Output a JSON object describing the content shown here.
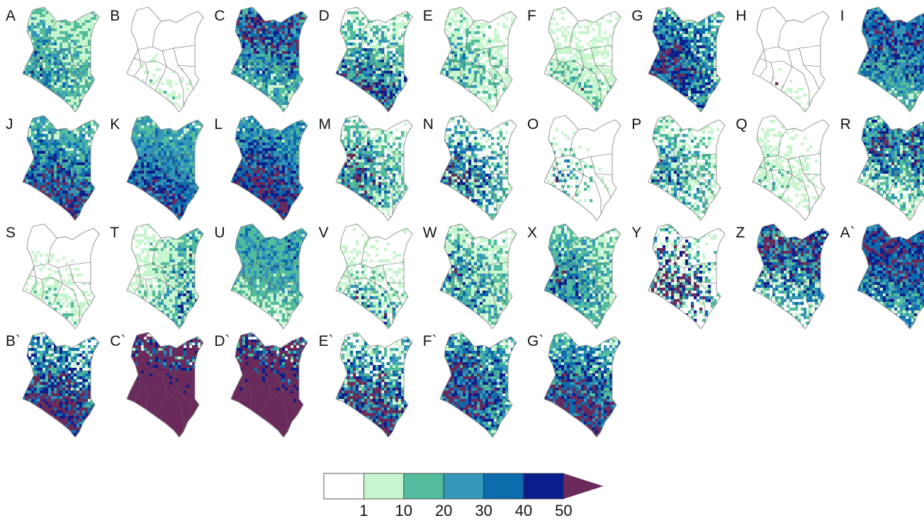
{
  "panels": [
    {
      "label": "A",
      "levels": {
        "1": 0.35,
        "2": 0.2,
        "3": 0.15,
        "4": 0.12,
        "5": 0.05,
        "6": 0.02
      },
      "focus": "west"
    },
    {
      "label": "B",
      "levels": {
        "1": 0.18,
        "2": 0.04,
        "3": 0.0,
        "4": 0.0,
        "5": 0.0,
        "6": 0.0
      },
      "focus": "south"
    },
    {
      "label": "C",
      "levels": {
        "1": 0.15,
        "2": 0.2,
        "3": 0.15,
        "4": 0.12,
        "5": 0.1,
        "6": 0.2
      },
      "focus": "north"
    },
    {
      "label": "D",
      "levels": {
        "1": 0.15,
        "2": 0.15,
        "3": 0.1,
        "4": 0.1,
        "5": 0.1,
        "6": 0.15
      },
      "focus": "south"
    },
    {
      "label": "E",
      "levels": {
        "1": 0.25,
        "2": 0.15,
        "3": 0.08,
        "4": 0.05,
        "5": 0.03,
        "6": 0.02
      },
      "focus": "west"
    },
    {
      "label": "F",
      "levels": {
        "1": 0.35,
        "2": 0.12,
        "3": 0.05,
        "4": 0.02,
        "5": 0.0,
        "6": 0.03
      },
      "focus": "south"
    },
    {
      "label": "G",
      "levels": {
        "1": 0.12,
        "2": 0.1,
        "3": 0.1,
        "4": 0.15,
        "5": 0.15,
        "6": 0.2
      },
      "focus": "west"
    },
    {
      "label": "H",
      "levels": {
        "1": 0.08,
        "2": 0.02,
        "3": 0.0,
        "4": 0.0,
        "5": 0.0,
        "6": 0.03
      },
      "focus": "south"
    },
    {
      "label": "I",
      "levels": {
        "1": 0.1,
        "2": 0.2,
        "3": 0.18,
        "4": 0.15,
        "5": 0.15,
        "6": 0.15
      },
      "focus": "north"
    },
    {
      "label": "J",
      "levels": {
        "1": 0.1,
        "2": 0.2,
        "3": 0.15,
        "4": 0.15,
        "5": 0.1,
        "6": 0.25
      },
      "focus": "south"
    },
    {
      "label": "K",
      "levels": {
        "1": 0.05,
        "2": 0.2,
        "3": 0.25,
        "4": 0.2,
        "5": 0.12,
        "6": 0.15
      },
      "focus": "south"
    },
    {
      "label": "L",
      "levels": {
        "1": 0.02,
        "2": 0.1,
        "3": 0.2,
        "4": 0.2,
        "5": 0.15,
        "6": 0.3
      },
      "focus": "south"
    },
    {
      "label": "M",
      "levels": {
        "1": 0.15,
        "2": 0.15,
        "3": 0.1,
        "4": 0.05,
        "5": 0.05,
        "6": 0.15
      },
      "focus": "west"
    },
    {
      "label": "N",
      "levels": {
        "1": 0.1,
        "2": 0.1,
        "3": 0.1,
        "4": 0.08,
        "5": 0.08,
        "6": 0.12
      },
      "focus": "west"
    },
    {
      "label": "O",
      "levels": {
        "1": 0.1,
        "2": 0.06,
        "3": 0.05,
        "4": 0.04,
        "5": 0.02,
        "6": 0.02
      },
      "focus": "west"
    },
    {
      "label": "P",
      "levels": {
        "1": 0.15,
        "2": 0.12,
        "3": 0.1,
        "4": 0.08,
        "5": 0.06,
        "6": 0.05
      },
      "focus": "west"
    },
    {
      "label": "Q",
      "levels": {
        "1": 0.25,
        "2": 0.08,
        "3": 0.03,
        "4": 0.0,
        "5": 0.0,
        "6": 0.02
      },
      "focus": "west"
    },
    {
      "label": "R",
      "levels": {
        "1": 0.15,
        "2": 0.15,
        "3": 0.1,
        "4": 0.1,
        "5": 0.08,
        "6": 0.15
      },
      "focus": "north"
    },
    {
      "label": "S",
      "levels": {
        "1": 0.25,
        "2": 0.06,
        "3": 0.03,
        "4": 0.0,
        "5": 0.0,
        "6": 0.03
      },
      "focus": "south"
    },
    {
      "label": "T",
      "levels": {
        "1": 0.3,
        "2": 0.15,
        "3": 0.08,
        "4": 0.05,
        "5": 0.05,
        "6": 0.05
      },
      "focus": "east"
    },
    {
      "label": "U",
      "levels": {
        "1": 0.2,
        "2": 0.3,
        "3": 0.2,
        "4": 0.1,
        "5": 0.05,
        "6": 0.02
      },
      "focus": "north"
    },
    {
      "label": "V",
      "levels": {
        "1": 0.2,
        "2": 0.1,
        "3": 0.06,
        "4": 0.05,
        "5": 0.04,
        "6": 0.04
      },
      "focus": "south"
    },
    {
      "label": "W",
      "levels": {
        "1": 0.25,
        "2": 0.15,
        "3": 0.1,
        "4": 0.08,
        "5": 0.06,
        "6": 0.08
      },
      "focus": "west"
    },
    {
      "label": "X",
      "levels": {
        "1": 0.2,
        "2": 0.2,
        "3": 0.12,
        "4": 0.1,
        "5": 0.08,
        "6": 0.08
      },
      "focus": "west"
    },
    {
      "label": "Y",
      "levels": {
        "1": 0.1,
        "2": 0.05,
        "3": 0.03,
        "4": 0.03,
        "5": 0.05,
        "6": 0.25
      },
      "focus": "west"
    },
    {
      "label": "Z",
      "levels": {
        "1": 0.1,
        "2": 0.1,
        "3": 0.1,
        "4": 0.1,
        "5": 0.12,
        "6": 0.2
      },
      "focus": "north"
    },
    {
      "label": "A`",
      "levels": {
        "1": 0.1,
        "2": 0.1,
        "3": 0.15,
        "4": 0.15,
        "5": 0.15,
        "6": 0.25
      },
      "focus": "north"
    },
    {
      "label": "B`",
      "levels": {
        "1": 0.08,
        "2": 0.08,
        "3": 0.1,
        "4": 0.1,
        "5": 0.12,
        "6": 0.35
      },
      "focus": "south"
    },
    {
      "label": "C`",
      "levels": {
        "1": 0.02,
        "2": 0.04,
        "3": 0.04,
        "4": 0.04,
        "5": 0.06,
        "6": 0.75
      },
      "focus": "south"
    },
    {
      "label": "D`",
      "levels": {
        "1": 0.02,
        "2": 0.05,
        "3": 0.05,
        "4": 0.05,
        "5": 0.08,
        "6": 0.7
      },
      "focus": "south"
    },
    {
      "label": "E`",
      "levels": {
        "1": 0.1,
        "2": 0.1,
        "3": 0.08,
        "4": 0.08,
        "5": 0.08,
        "6": 0.3
      },
      "focus": "south"
    },
    {
      "label": "F`",
      "levels": {
        "1": 0.08,
        "2": 0.12,
        "3": 0.12,
        "4": 0.12,
        "5": 0.12,
        "6": 0.25
      },
      "focus": "west"
    },
    {
      "label": "G`",
      "levels": {
        "1": 0.08,
        "2": 0.15,
        "3": 0.12,
        "4": 0.12,
        "5": 0.12,
        "6": 0.3
      },
      "focus": "south"
    }
  ],
  "legend": {
    "colors": [
      "#ffffff",
      "#c7f5cd",
      "#52bc9c",
      "#3596b8",
      "#0d6cac",
      "#0c1d8c",
      "#6b2a5c"
    ],
    "tick_labels": [
      "1",
      "10",
      "20",
      "30",
      "40",
      "50"
    ]
  },
  "colors": {
    "outline": "#8a8a8a",
    "border": "#5a5a5a"
  }
}
